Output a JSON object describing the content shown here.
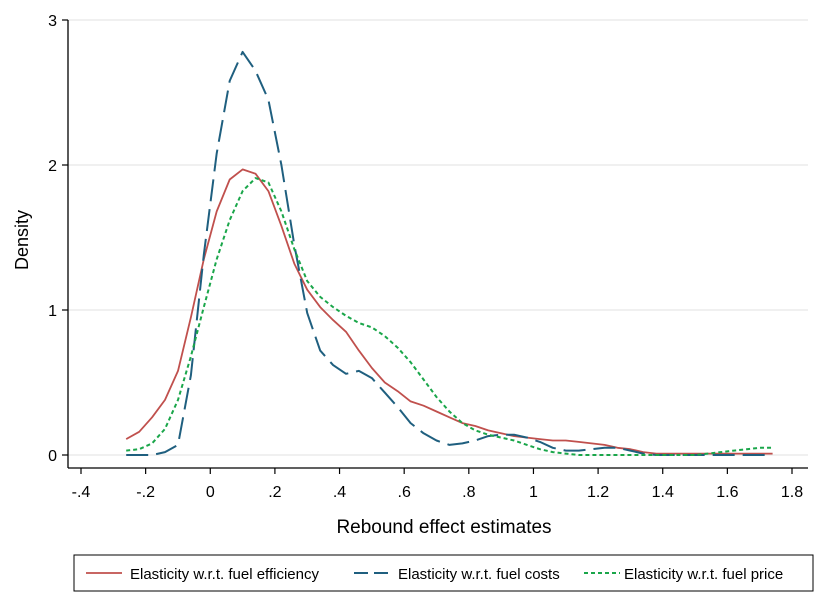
{
  "chart_data": {
    "type": "line",
    "xlabel": "Rebound effect estimates",
    "ylabel": "Density",
    "xlim": [
      -0.4,
      1.8
    ],
    "ylim": [
      0,
      3
    ],
    "xticks": [
      -0.4,
      -0.2,
      0,
      0.2,
      0.4,
      0.6,
      0.8,
      1,
      1.2,
      1.4,
      1.6,
      1.8
    ],
    "xtick_labels": [
      "-.4",
      "-.2",
      "0",
      ".2",
      ".4",
      ".6",
      ".8",
      "1",
      "1.2",
      "1.4",
      "1.6",
      "1.8"
    ],
    "yticks": [
      0,
      1,
      2,
      3
    ],
    "ytick_labels": [
      "0",
      "1",
      "2",
      "3"
    ],
    "grid": "horizontal",
    "legend_position": "bottom",
    "series": [
      {
        "name": "Elasticity w.r.t. fuel efficiency",
        "color": "#c0504d",
        "style": "solid",
        "x": [
          -0.26,
          -0.22,
          -0.18,
          -0.14,
          -0.1,
          -0.06,
          -0.02,
          0.02,
          0.06,
          0.1,
          0.14,
          0.18,
          0.22,
          0.26,
          0.3,
          0.34,
          0.38,
          0.42,
          0.46,
          0.5,
          0.54,
          0.58,
          0.62,
          0.66,
          0.7,
          0.74,
          0.78,
          0.82,
          0.86,
          0.9,
          0.94,
          0.98,
          1.02,
          1.06,
          1.1,
          1.14,
          1.18,
          1.22,
          1.26,
          1.3,
          1.34,
          1.38,
          1.42,
          1.46,
          1.5,
          1.54,
          1.58,
          1.62,
          1.66,
          1.7,
          1.74
        ],
        "values": [
          0.11,
          0.16,
          0.26,
          0.38,
          0.58,
          0.95,
          1.35,
          1.68,
          1.9,
          1.97,
          1.94,
          1.82,
          1.58,
          1.32,
          1.14,
          1.02,
          0.93,
          0.85,
          0.72,
          0.6,
          0.5,
          0.44,
          0.37,
          0.34,
          0.3,
          0.26,
          0.22,
          0.2,
          0.17,
          0.15,
          0.13,
          0.12,
          0.11,
          0.1,
          0.1,
          0.09,
          0.08,
          0.07,
          0.05,
          0.04,
          0.02,
          0.01,
          0.01,
          0.01,
          0.01,
          0.01,
          0.01,
          0.01,
          0.01,
          0.01,
          0.01
        ]
      },
      {
        "name": "Elasticity w.r.t. fuel costs",
        "color": "#1f5f7f",
        "style": "longdash",
        "x": [
          -0.26,
          -0.22,
          -0.18,
          -0.14,
          -0.1,
          -0.06,
          -0.02,
          0.02,
          0.06,
          0.1,
          0.14,
          0.18,
          0.22,
          0.26,
          0.3,
          0.34,
          0.38,
          0.42,
          0.46,
          0.5,
          0.54,
          0.58,
          0.62,
          0.66,
          0.7,
          0.74,
          0.78,
          0.82,
          0.86,
          0.9,
          0.94,
          0.98,
          1.02,
          1.06,
          1.1,
          1.14,
          1.18,
          1.22,
          1.26,
          1.3,
          1.34,
          1.38,
          1.42,
          1.46,
          1.5,
          1.54,
          1.58,
          1.62,
          1.66,
          1.7,
          1.74
        ],
        "values": [
          0.0,
          0.0,
          0.0,
          0.02,
          0.07,
          0.55,
          1.38,
          2.08,
          2.58,
          2.78,
          2.65,
          2.45,
          2.0,
          1.45,
          0.98,
          0.72,
          0.62,
          0.56,
          0.58,
          0.53,
          0.43,
          0.33,
          0.22,
          0.15,
          0.1,
          0.07,
          0.08,
          0.1,
          0.13,
          0.14,
          0.14,
          0.12,
          0.09,
          0.05,
          0.03,
          0.03,
          0.04,
          0.05,
          0.05,
          0.03,
          0.01,
          0.0,
          0.0,
          0.0,
          0.0,
          0.0,
          0.0,
          0.0,
          0.0,
          0.0,
          0.0
        ]
      },
      {
        "name": "Elasticity w.r.t. fuel price",
        "color": "#1aa64a",
        "style": "shortdash",
        "x": [
          -0.26,
          -0.22,
          -0.18,
          -0.14,
          -0.1,
          -0.06,
          -0.02,
          0.02,
          0.06,
          0.1,
          0.14,
          0.18,
          0.22,
          0.26,
          0.3,
          0.34,
          0.38,
          0.42,
          0.46,
          0.5,
          0.54,
          0.58,
          0.62,
          0.66,
          0.7,
          0.74,
          0.78,
          0.82,
          0.86,
          0.9,
          0.94,
          0.98,
          1.02,
          1.06,
          1.1,
          1.14,
          1.18,
          1.22,
          1.26,
          1.3,
          1.34,
          1.38,
          1.42,
          1.46,
          1.5,
          1.54,
          1.58,
          1.62,
          1.66,
          1.7,
          1.74
        ],
        "values": [
          0.03,
          0.04,
          0.08,
          0.18,
          0.38,
          0.68,
          1.02,
          1.35,
          1.62,
          1.82,
          1.91,
          1.88,
          1.68,
          1.42,
          1.2,
          1.09,
          1.02,
          0.96,
          0.91,
          0.88,
          0.82,
          0.74,
          0.64,
          0.52,
          0.4,
          0.3,
          0.22,
          0.17,
          0.14,
          0.12,
          0.1,
          0.07,
          0.04,
          0.02,
          0.01,
          0.0,
          0.0,
          0.0,
          0.0,
          0.0,
          0.0,
          0.0,
          0.0,
          0.0,
          0.0,
          0.01,
          0.02,
          0.03,
          0.04,
          0.05,
          0.05
        ]
      }
    ]
  }
}
